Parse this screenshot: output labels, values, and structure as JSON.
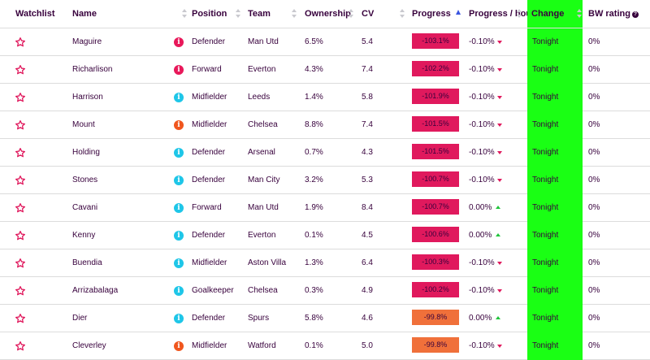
{
  "headers": {
    "watchlist": "Watchlist",
    "name": "Name",
    "position": "Position",
    "team": "Team",
    "ownership": "Ownership",
    "cv": "CV",
    "progress": "Progress",
    "progress_hour": "Progress / hour",
    "change_time": "Change Time",
    "bw_rating": "BW rating"
  },
  "colors": {
    "progress_red": "#e0195d",
    "progress_orange": "#f0703a",
    "status_red": "#e8185a",
    "status_orange": "#f0561e",
    "status_cyan": "#1ec6e8",
    "change_green": "#1aff14",
    "trend_down": "#e0195d",
    "trend_up": "#21c43c"
  },
  "rows": [
    {
      "name": "Maguire",
      "status": "red",
      "position": "Defender",
      "team": "Man Utd",
      "ownership": "6.5%",
      "cv": "5.4",
      "progress": "-103.1%",
      "progress_color": "red",
      "progress_hour": "-0.10%",
      "trend": "down",
      "change_time": "Tonight",
      "bw_rating": "0%"
    },
    {
      "name": "Richarlison",
      "status": "red",
      "position": "Forward",
      "team": "Everton",
      "ownership": "4.3%",
      "cv": "7.4",
      "progress": "-102.2%",
      "progress_color": "red",
      "progress_hour": "-0.10%",
      "trend": "down",
      "change_time": "Tonight",
      "bw_rating": "0%"
    },
    {
      "name": "Harrison",
      "status": "cyan",
      "position": "Midfielder",
      "team": "Leeds",
      "ownership": "1.4%",
      "cv": "5.8",
      "progress": "-101.9%",
      "progress_color": "red",
      "progress_hour": "-0.10%",
      "trend": "down",
      "change_time": "Tonight",
      "bw_rating": "0%"
    },
    {
      "name": "Mount",
      "status": "orange",
      "position": "Midfielder",
      "team": "Chelsea",
      "ownership": "8.8%",
      "cv": "7.4",
      "progress": "-101.5%",
      "progress_color": "red",
      "progress_hour": "-0.10%",
      "trend": "down",
      "change_time": "Tonight",
      "bw_rating": "0%"
    },
    {
      "name": "Holding",
      "status": "cyan",
      "position": "Defender",
      "team": "Arsenal",
      "ownership": "0.7%",
      "cv": "4.3",
      "progress": "-101.5%",
      "progress_color": "red",
      "progress_hour": "-0.10%",
      "trend": "down",
      "change_time": "Tonight",
      "bw_rating": "0%"
    },
    {
      "name": "Stones",
      "status": "cyan",
      "position": "Defender",
      "team": "Man City",
      "ownership": "3.2%",
      "cv": "5.3",
      "progress": "-100.7%",
      "progress_color": "red",
      "progress_hour": "-0.10%",
      "trend": "down",
      "change_time": "Tonight",
      "bw_rating": "0%"
    },
    {
      "name": "Cavani",
      "status": "cyan",
      "position": "Forward",
      "team": "Man Utd",
      "ownership": "1.9%",
      "cv": "8.4",
      "progress": "-100.7%",
      "progress_color": "red",
      "progress_hour": "0.00%",
      "trend": "up",
      "change_time": "Tonight",
      "bw_rating": "0%"
    },
    {
      "name": "Kenny",
      "status": "cyan",
      "position": "Defender",
      "team": "Everton",
      "ownership": "0.1%",
      "cv": "4.5",
      "progress": "-100.6%",
      "progress_color": "red",
      "progress_hour": "0.00%",
      "trend": "up",
      "change_time": "Tonight",
      "bw_rating": "0%"
    },
    {
      "name": "Buendia",
      "status": "cyan",
      "position": "Midfielder",
      "team": "Aston Villa",
      "ownership": "1.3%",
      "cv": "6.4",
      "progress": "-100.3%",
      "progress_color": "red",
      "progress_hour": "-0.10%",
      "trend": "down",
      "change_time": "Tonight",
      "bw_rating": "0%"
    },
    {
      "name": "Arrizabalaga",
      "status": "cyan",
      "position": "Goalkeeper",
      "team": "Chelsea",
      "ownership": "0.3%",
      "cv": "4.9",
      "progress": "-100.2%",
      "progress_color": "red",
      "progress_hour": "-0.10%",
      "trend": "down",
      "change_time": "Tonight",
      "bw_rating": "0%"
    },
    {
      "name": "Dier",
      "status": "cyan",
      "position": "Defender",
      "team": "Spurs",
      "ownership": "5.8%",
      "cv": "4.6",
      "progress": "-99.8%",
      "progress_color": "orange",
      "progress_hour": "0.00%",
      "trend": "up",
      "change_time": "Tonight",
      "bw_rating": "0%"
    },
    {
      "name": "Cleverley",
      "status": "orange",
      "position": "Midfielder",
      "team": "Watford",
      "ownership": "0.1%",
      "cv": "5.0",
      "progress": "-99.8%",
      "progress_color": "orange",
      "progress_hour": "-0.10%",
      "trend": "down",
      "change_time": "Tonight",
      "bw_rating": "0%"
    }
  ]
}
